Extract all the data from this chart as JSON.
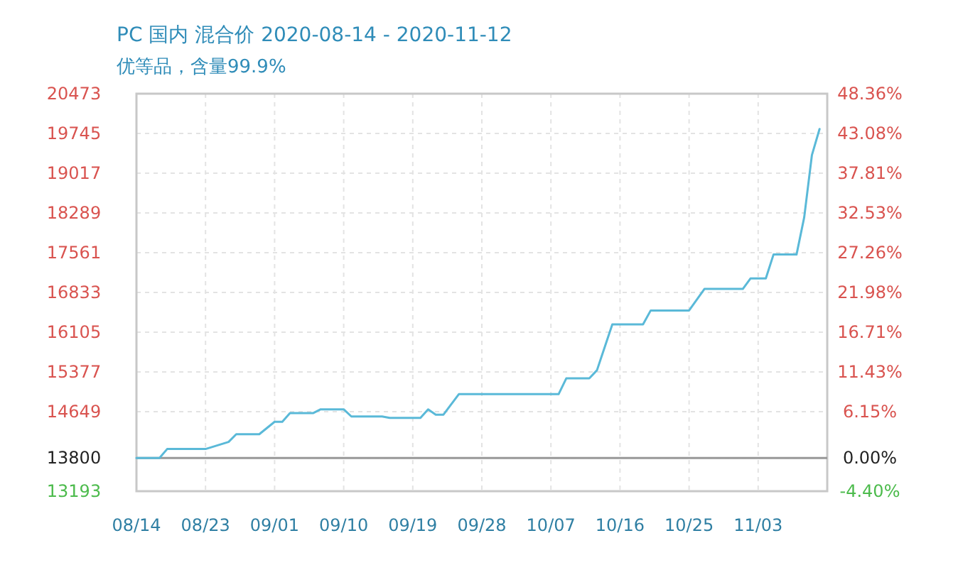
{
  "chart_data": {
    "type": "line",
    "title": "PC 国内 混合价 2020-08-14 - 2020-11-12",
    "subtitle": "优等品，含量99.9%",
    "x": [
      "2020-08-14",
      "2020-08-17",
      "2020-08-18",
      "2020-08-23",
      "2020-08-26",
      "2020-08-27",
      "2020-08-30",
      "2020-09-01",
      "2020-09-02",
      "2020-09-03",
      "2020-09-06",
      "2020-09-07",
      "2020-09-10",
      "2020-09-11",
      "2020-09-15",
      "2020-09-16",
      "2020-09-20",
      "2020-09-21",
      "2020-09-22",
      "2020-09-23",
      "2020-09-25",
      "2020-10-08",
      "2020-10-09",
      "2020-10-12",
      "2020-10-13",
      "2020-10-15",
      "2020-10-19",
      "2020-10-20",
      "2020-10-25",
      "2020-10-27",
      "2020-11-01",
      "2020-11-02",
      "2020-11-04",
      "2020-11-05",
      "2020-11-08",
      "2020-11-09",
      "2020-11-10",
      "2020-11-11"
    ],
    "series": [
      {
        "color": "#5ab9d8",
        "values": [
          13800,
          13800,
          13965,
          13965,
          14095,
          14236,
          14236,
          14464,
          14464,
          14622,
          14622,
          14692,
          14692,
          14561,
          14561,
          14535,
          14535,
          14692,
          14595,
          14595,
          14970,
          14970,
          15259,
          15259,
          15408,
          16249,
          16249,
          16503,
          16503,
          16897,
          16897,
          17089,
          17089,
          17527,
          17527,
          18209,
          19346,
          19826
        ]
      }
    ],
    "xlim": [
      "2020-08-14",
      "2020-11-12"
    ],
    "xticks": [
      {
        "value": "2020-08-14",
        "label": "08/14"
      },
      {
        "value": "2020-08-23",
        "label": "08/23"
      },
      {
        "value": "2020-09-01",
        "label": "09/01"
      },
      {
        "value": "2020-09-10",
        "label": "09/10"
      },
      {
        "value": "2020-09-19",
        "label": "09/19"
      },
      {
        "value": "2020-09-28",
        "label": "09/28"
      },
      {
        "value": "2020-10-07",
        "label": "10/07"
      },
      {
        "value": "2020-10-16",
        "label": "10/16"
      },
      {
        "value": "2020-10-25",
        "label": "10/25"
      },
      {
        "value": "2020-11-03",
        "label": "11/03"
      }
    ],
    "ylim": [
      13193,
      20473
    ],
    "yticks": [
      13193,
      13800,
      14649,
      15377,
      16105,
      16833,
      17561,
      18289,
      19017,
      19745,
      20473
    ],
    "y2lim": [
      -4.4,
      48.36
    ],
    "y2ticks": [
      {
        "value": -4.4,
        "label": "-4.40%"
      },
      {
        "value": 0,
        "label": "0.00%"
      },
      {
        "value": 6.15,
        "label": "6.15%"
      },
      {
        "value": 11.43,
        "label": "11.43%"
      },
      {
        "value": 16.71,
        "label": "16.71%"
      },
      {
        "value": 21.98,
        "label": "21.98%"
      },
      {
        "value": 27.26,
        "label": "27.26%"
      },
      {
        "value": 32.53,
        "label": "32.53%"
      },
      {
        "value": 37.81,
        "label": "37.81%"
      },
      {
        "value": 43.08,
        "label": "43.08%"
      },
      {
        "value": 48.36,
        "label": "48.36%"
      }
    ],
    "ref_lines": [
      {
        "axis": "y",
        "value": 13800,
        "color": "#999999"
      }
    ],
    "grid": true,
    "marker": "none",
    "line_style": "solid"
  }
}
